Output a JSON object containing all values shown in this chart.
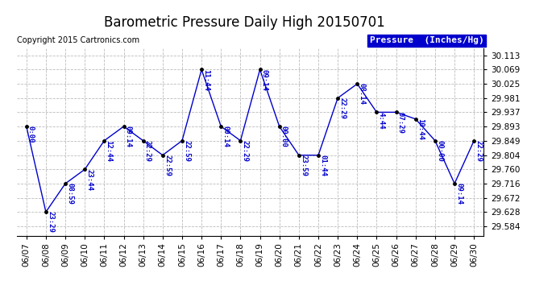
{
  "title": "Barometric Pressure Daily High 20150701",
  "copyright": "Copyright 2015 Cartronics.com",
  "legend_label": "Pressure  (Inches/Hg)",
  "dates": [
    "06/07",
    "06/08",
    "06/09",
    "06/10",
    "06/11",
    "06/12",
    "06/13",
    "06/14",
    "06/15",
    "06/16",
    "06/17",
    "06/18",
    "06/19",
    "06/20",
    "06/21",
    "06/22",
    "06/23",
    "06/24",
    "06/25",
    "06/26",
    "06/27",
    "06/28",
    "06/29",
    "06/30"
  ],
  "values": [
    29.893,
    29.628,
    29.716,
    29.76,
    29.849,
    29.893,
    29.849,
    29.804,
    29.849,
    30.069,
    29.893,
    29.849,
    30.069,
    29.893,
    29.804,
    29.804,
    29.981,
    30.025,
    29.937,
    29.937,
    29.916,
    29.849,
    29.716,
    29.849
  ],
  "annotations": [
    "0:00",
    "23:29",
    "08:59",
    "23:44",
    "12:44",
    "09:14",
    "22:29",
    "22:59",
    "22:59",
    "11:44",
    "00:14",
    "22:29",
    "09:14",
    "00:00",
    "23:59",
    "01:44",
    "22:29",
    "08:14",
    "4:44",
    "07:29",
    "10:44",
    "00:00",
    "09:14",
    "22:29"
  ],
  "line_color": "#0000cc",
  "marker_color": "#000000",
  "annotation_color": "#0000cc",
  "bg_color": "#ffffff",
  "grid_color": "#bbbbbb",
  "legend_bg": "#0000cc",
  "legend_text_color": "#ffffff",
  "yticks": [
    29.584,
    29.628,
    29.672,
    29.716,
    29.76,
    29.804,
    29.849,
    29.893,
    29.937,
    29.981,
    30.025,
    30.069,
    30.113
  ],
  "ylim": [
    29.555,
    30.135
  ],
  "title_fontsize": 12,
  "annotation_fontsize": 6.5,
  "tick_fontsize": 7.5,
  "legend_fontsize": 8,
  "copyright_fontsize": 7
}
